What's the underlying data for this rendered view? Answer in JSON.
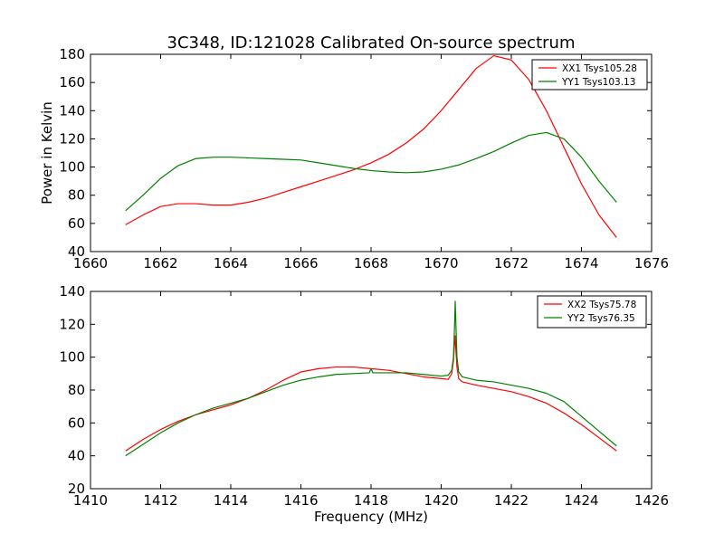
{
  "figure": {
    "title": "3C348, ID:121028 Calibrated On-source spectrum"
  },
  "chart_data": [
    {
      "type": "line",
      "title": "3C348, ID:121028 Calibrated On-source spectrum",
      "xlabel": "",
      "ylabel": "Power in Kelvin",
      "xlim": [
        1660,
        1676
      ],
      "ylim": [
        40,
        180
      ],
      "xticks": [
        1660,
        1662,
        1664,
        1666,
        1668,
        1670,
        1672,
        1674,
        1676
      ],
      "yticks": [
        40,
        60,
        80,
        100,
        120,
        140,
        160,
        180
      ],
      "grid": false,
      "legend_position": "top-right",
      "series": [
        {
          "name": "XX1 Tsys105.28",
          "color": "#ff0000",
          "x": [
            1661.0,
            1661.5,
            1662.0,
            1662.5,
            1663.0,
            1663.5,
            1664.0,
            1664.5,
            1665.0,
            1665.5,
            1666.0,
            1666.5,
            1667.0,
            1667.5,
            1668.0,
            1668.5,
            1669.0,
            1669.5,
            1670.0,
            1670.5,
            1671.0,
            1671.5,
            1672.0,
            1672.5,
            1673.0,
            1673.5,
            1674.0,
            1674.5,
            1675.0
          ],
          "y": [
            59,
            66,
            72,
            74,
            74,
            73,
            73,
            75,
            78,
            82,
            86,
            90,
            94,
            98,
            103,
            109,
            117,
            127,
            140,
            155,
            170,
            179,
            176,
            162,
            140,
            114,
            88,
            66,
            50
          ]
        },
        {
          "name": "YY1 Tsys103.13",
          "color": "#008000",
          "x": [
            1661.0,
            1661.5,
            1662.0,
            1662.5,
            1663.0,
            1663.5,
            1664.0,
            1664.5,
            1665.0,
            1665.5,
            1666.0,
            1666.5,
            1667.0,
            1667.5,
            1668.0,
            1668.5,
            1669.0,
            1669.5,
            1670.0,
            1670.5,
            1671.0,
            1671.5,
            1672.0,
            1672.5,
            1673.0,
            1673.5,
            1674.0,
            1674.5,
            1675.0
          ],
          "y": [
            69,
            80,
            92,
            101,
            106,
            107,
            107,
            106.5,
            106,
            105.5,
            105,
            103,
            101,
            99,
            97.5,
            96.5,
            96,
            96.5,
            98.5,
            101.5,
            106,
            111,
            117,
            122.5,
            124.5,
            120,
            107,
            90,
            75
          ]
        }
      ]
    },
    {
      "type": "line",
      "title": "",
      "xlabel": "Frequency (MHz)",
      "ylabel": "",
      "xlim": [
        1410,
        1426
      ],
      "ylim": [
        20,
        140
      ],
      "xticks": [
        1410,
        1412,
        1414,
        1416,
        1418,
        1420,
        1422,
        1424,
        1426
      ],
      "yticks": [
        20,
        40,
        60,
        80,
        100,
        120,
        140
      ],
      "grid": false,
      "legend_position": "top-right",
      "series": [
        {
          "name": "XX2 Tsys75.78",
          "color": "#ff0000",
          "x": [
            1411.0,
            1411.5,
            1412.0,
            1412.5,
            1413.0,
            1413.5,
            1414.0,
            1414.5,
            1415.0,
            1415.5,
            1416.0,
            1416.5,
            1417.0,
            1417.5,
            1418.0,
            1418.5,
            1419.0,
            1419.5,
            1420.0,
            1420.2,
            1420.3,
            1420.35,
            1420.38,
            1420.4,
            1420.42,
            1420.45,
            1420.5,
            1420.6,
            1421.0,
            1421.5,
            1422.0,
            1422.5,
            1423.0,
            1423.5,
            1424.0,
            1424.5,
            1425.0
          ],
          "y": [
            43,
            50,
            56,
            61,
            65,
            68,
            71,
            75,
            80,
            86,
            91,
            93,
            94,
            94,
            93,
            92,
            90,
            88,
            87,
            86.5,
            90,
            98,
            108,
            113,
            104,
            94,
            87,
            85,
            83,
            81,
            79,
            76,
            72,
            66,
            59,
            51,
            43
          ]
        },
        {
          "name": "YY2 Tsys76.35",
          "color": "#008000",
          "x": [
            1411.0,
            1411.5,
            1412.0,
            1412.5,
            1413.0,
            1413.5,
            1414.0,
            1414.5,
            1415.0,
            1415.5,
            1416.0,
            1416.5,
            1417.0,
            1417.5,
            1417.95,
            1418.0,
            1418.05,
            1418.5,
            1419.0,
            1419.5,
            1420.0,
            1420.2,
            1420.3,
            1420.35,
            1420.38,
            1420.4,
            1420.42,
            1420.45,
            1420.5,
            1420.6,
            1421.0,
            1421.5,
            1422.0,
            1422.5,
            1423.0,
            1423.5,
            1424.0,
            1424.5,
            1425.0
          ],
          "y": [
            40,
            47,
            54,
            60,
            65,
            69,
            72,
            75,
            79,
            83,
            86,
            88,
            89.5,
            90,
            90.5,
            93,
            90.5,
            90.5,
            90.5,
            89.5,
            88.5,
            89,
            92,
            100,
            118,
            134,
            120,
            100,
            91,
            88,
            86,
            85,
            83,
            81,
            78,
            73,
            64,
            55,
            46
          ]
        }
      ]
    }
  ]
}
